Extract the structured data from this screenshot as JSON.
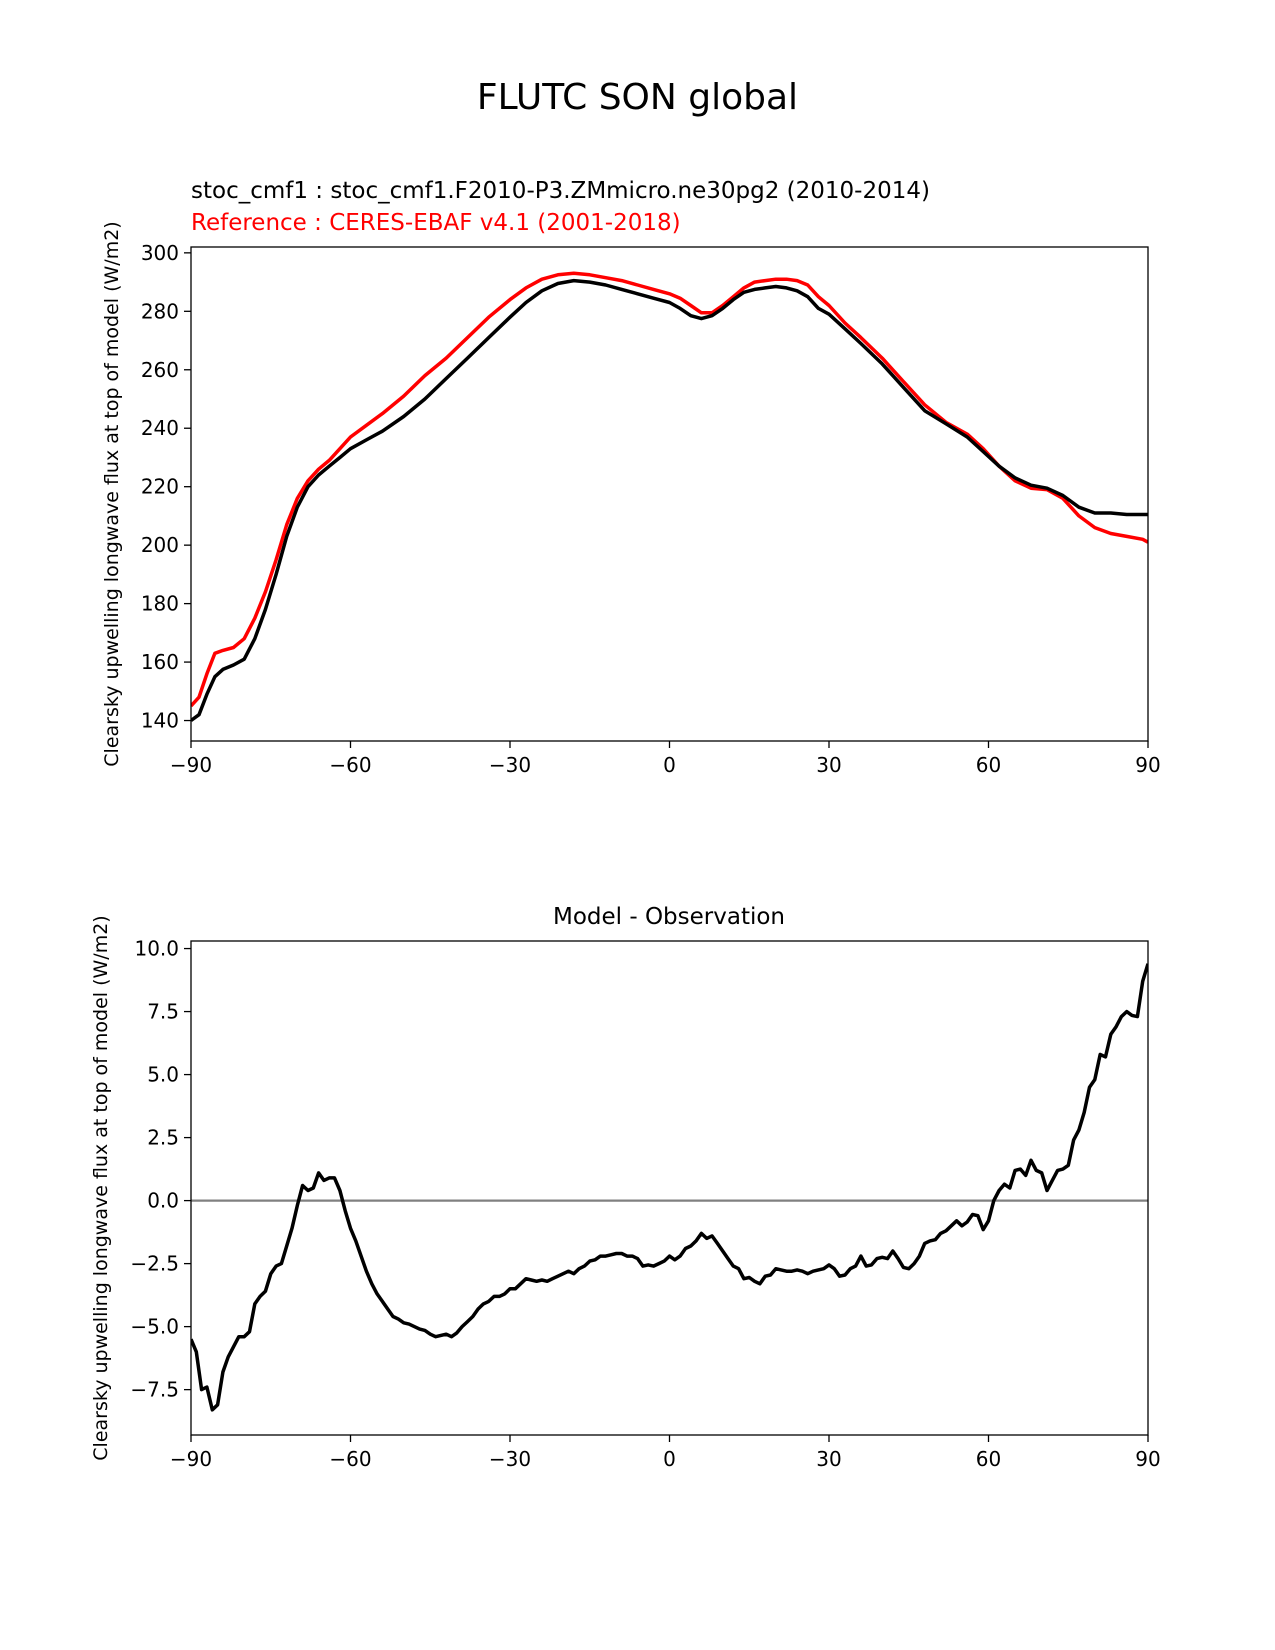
{
  "figure": {
    "title": "FLUTC SON global"
  },
  "chart_data": [
    {
      "type": "line",
      "test_label": "stoc_cmf1 : stoc_cmf1.F2010-P3.ZMmicro.ne30pg2 (2010-2014)",
      "ref_label": "Reference : CERES-EBAF v4.1 (2001-2018)",
      "ylabel": "Clearsky upwelling longwave flux at top of model (W/m2)",
      "xlabel": "",
      "xlim": [
        -90,
        90
      ],
      "ylim": [
        133,
        302
      ],
      "xticks": [
        -90,
        -60,
        -30,
        0,
        30,
        60,
        90
      ],
      "yticks": [
        140,
        160,
        180,
        200,
        220,
        240,
        260,
        280,
        300
      ],
      "series": [
        {
          "color": "#ff0000",
          "x": [
            -90,
            -88.5,
            -87,
            -85.5,
            -84,
            -82,
            -80,
            -78,
            -76,
            -74,
            -72,
            -70,
            -68,
            -66,
            -64,
            -62,
            -60,
            -57,
            -54,
            -50,
            -46,
            -42,
            -38,
            -34,
            -30,
            -27,
            -24,
            -21,
            -18,
            -15,
            -12,
            -9,
            -6,
            -3,
            0,
            2,
            4,
            6,
            8,
            10,
            12,
            14,
            16,
            18,
            20,
            22,
            24,
            26,
            28,
            30,
            33,
            36,
            40,
            44,
            48,
            52,
            56,
            59,
            62,
            65,
            68,
            71,
            74,
            77,
            80,
            83,
            86,
            89,
            90
          ],
          "y": [
            145,
            148,
            156,
            163,
            164,
            165,
            168,
            175,
            184,
            195,
            207,
            216,
            222,
            226,
            229,
            233,
            237,
            241,
            245,
            251,
            258,
            264,
            271,
            278,
            284,
            288,
            291,
            292.5,
            293,
            292.5,
            291.5,
            290.5,
            289,
            287.5,
            286,
            284.5,
            282,
            279.5,
            279.5,
            282,
            285,
            288,
            290,
            290.5,
            291,
            291,
            290.5,
            289,
            285,
            282,
            276,
            271,
            264,
            256,
            248,
            242,
            238,
            233,
            227,
            222,
            219.5,
            219,
            216,
            210,
            206,
            204,
            203,
            202,
            201
          ]
        },
        {
          "color": "#000000",
          "x": [
            -90,
            -88.5,
            -87,
            -85.5,
            -84,
            -82,
            -80,
            -78,
            -76,
            -74,
            -72,
            -70,
            -68,
            -66,
            -64,
            -62,
            -60,
            -57,
            -54,
            -50,
            -46,
            -42,
            -38,
            -34,
            -30,
            -27,
            -24,
            -21,
            -18,
            -15,
            -12,
            -9,
            -6,
            -3,
            0,
            2,
            4,
            6,
            8,
            10,
            12,
            14,
            16,
            18,
            20,
            22,
            24,
            26,
            28,
            30,
            33,
            36,
            40,
            44,
            48,
            52,
            56,
            59,
            62,
            65,
            68,
            71,
            74,
            77,
            80,
            83,
            86,
            89,
            90
          ],
          "y": [
            140,
            142,
            149,
            155,
            157.5,
            159,
            161,
            168,
            178,
            190,
            203,
            213,
            220,
            224,
            227,
            230,
            233,
            236,
            239,
            244,
            250,
            257,
            264,
            271,
            278,
            283,
            287,
            289.5,
            290.5,
            290,
            289,
            287.5,
            286,
            284.5,
            283,
            281,
            278.5,
            277.5,
            278.5,
            281,
            284,
            286.5,
            287.5,
            288,
            288.5,
            288,
            287,
            285,
            281,
            279,
            274,
            269,
            262,
            254,
            246,
            241.5,
            237,
            232,
            227,
            223,
            220.5,
            219.5,
            217,
            213,
            211,
            211,
            210.5,
            210.5,
            210.5
          ]
        }
      ]
    },
    {
      "type": "line",
      "title": "Model - Observation",
      "ylabel": "Clearsky upwelling longwave flux at top of model (W/m2)",
      "xlabel": "",
      "xlim": [
        -90,
        90
      ],
      "ylim": [
        -9.3,
        10.3
      ],
      "xticks": [
        -90,
        -60,
        -30,
        0,
        30,
        60,
        90
      ],
      "yticks": [
        -7.5,
        -5.0,
        -2.5,
        0.0,
        2.5,
        5.0,
        7.5,
        10.0
      ],
      "ytick_labels": [
        "−7.5",
        "−5.0",
        "−2.5",
        "0.0",
        "2.5",
        "5.0",
        "7.5",
        "10.0"
      ],
      "zero_line": true,
      "series": [
        {
          "color": "#000000",
          "x": [
            -90,
            -89,
            -88,
            -87,
            -86,
            -85,
            -84,
            -83,
            -82,
            -81,
            -80,
            -79,
            -78,
            -77,
            -76,
            -75,
            -74,
            -73,
            -72,
            -71,
            -70,
            -69,
            -68,
            -67,
            -66,
            -65,
            -64,
            -63,
            -62,
            -61,
            -60,
            -59,
            -58,
            -57,
            -56,
            -55,
            -54,
            -53,
            -52,
            -51,
            -50,
            -49,
            -48,
            -47,
            -46,
            -45,
            -44,
            -43,
            -42,
            -41,
            -40,
            -39,
            -38,
            -37,
            -36,
            -35,
            -34,
            -33,
            -32,
            -31,
            -30,
            -29,
            -28,
            -27,
            -26,
            -25,
            -24,
            -23,
            -22,
            -21,
            -20,
            -19,
            -18,
            -17,
            -16,
            -15,
            -14,
            -13,
            -12,
            -11,
            -10,
            -9,
            -8,
            -7,
            -6,
            -5,
            -4,
            -3,
            -2,
            -1,
            0,
            1,
            2,
            3,
            4,
            5,
            6,
            7,
            8,
            9,
            10,
            11,
            12,
            13,
            14,
            15,
            16,
            17,
            18,
            19,
            20,
            21,
            22,
            23,
            24,
            25,
            26,
            27,
            28,
            29,
            30,
            31,
            32,
            33,
            34,
            35,
            36,
            37,
            38,
            39,
            40,
            41,
            42,
            43,
            44,
            45,
            46,
            47,
            48,
            49,
            50,
            51,
            52,
            53,
            54,
            55,
            56,
            57,
            58,
            59,
            60,
            61,
            62,
            63,
            64,
            65,
            66,
            67,
            68,
            69,
            70,
            71,
            72,
            73,
            74,
            75,
            76,
            77,
            78,
            79,
            80,
            81,
            82,
            83,
            84,
            85,
            86,
            87,
            88,
            89,
            90
          ],
          "y": [
            -5.5,
            -6.0,
            -7.5,
            -7.4,
            -8.3,
            -8.1,
            -6.8,
            -6.2,
            -5.8,
            -5.4,
            -5.4,
            -5.2,
            -4.1,
            -3.8,
            -3.6,
            -2.9,
            -2.6,
            -2.5,
            -1.8,
            -1.1,
            -0.2,
            0.6,
            0.4,
            0.5,
            1.1,
            0.8,
            0.9,
            0.9,
            0.4,
            -0.4,
            -1.1,
            -1.6,
            -2.2,
            -2.8,
            -3.3,
            -3.7,
            -4.0,
            -4.3,
            -4.6,
            -4.7,
            -4.85,
            -4.9,
            -5.0,
            -5.1,
            -5.15,
            -5.3,
            -5.4,
            -5.35,
            -5.3,
            -5.4,
            -5.25,
            -5.0,
            -4.8,
            -4.6,
            -4.3,
            -4.1,
            -4.0,
            -3.8,
            -3.8,
            -3.7,
            -3.5,
            -3.5,
            -3.3,
            -3.1,
            -3.15,
            -3.2,
            -3.15,
            -3.2,
            -3.1,
            -3.0,
            -2.9,
            -2.8,
            -2.9,
            -2.7,
            -2.6,
            -2.4,
            -2.35,
            -2.2,
            -2.2,
            -2.15,
            -2.1,
            -2.1,
            -2.2,
            -2.2,
            -2.3,
            -2.6,
            -2.55,
            -2.6,
            -2.5,
            -2.4,
            -2.2,
            -2.35,
            -2.2,
            -1.9,
            -1.8,
            -1.6,
            -1.3,
            -1.5,
            -1.4,
            -1.7,
            -2.0,
            -2.3,
            -2.6,
            -2.7,
            -3.1,
            -3.05,
            -3.2,
            -3.3,
            -3.0,
            -2.95,
            -2.7,
            -2.75,
            -2.8,
            -2.8,
            -2.75,
            -2.8,
            -2.9,
            -2.8,
            -2.75,
            -2.7,
            -2.55,
            -2.7,
            -3.0,
            -2.95,
            -2.7,
            -2.6,
            -2.2,
            -2.6,
            -2.55,
            -2.3,
            -2.25,
            -2.3,
            -2.0,
            -2.3,
            -2.65,
            -2.7,
            -2.5,
            -2.2,
            -1.7,
            -1.6,
            -1.55,
            -1.3,
            -1.2,
            -1.0,
            -0.8,
            -1.0,
            -0.85,
            -0.55,
            -0.6,
            -1.15,
            -0.8,
            0.0,
            0.4,
            0.65,
            0.5,
            1.2,
            1.25,
            1.0,
            1.6,
            1.2,
            1.1,
            0.4,
            0.8,
            1.2,
            1.25,
            1.4,
            2.4,
            2.8,
            3.5,
            4.5,
            4.8,
            5.8,
            5.7,
            6.6,
            6.9,
            7.3,
            7.5,
            7.35,
            7.3,
            8.7,
            9.4
          ]
        }
      ]
    }
  ]
}
